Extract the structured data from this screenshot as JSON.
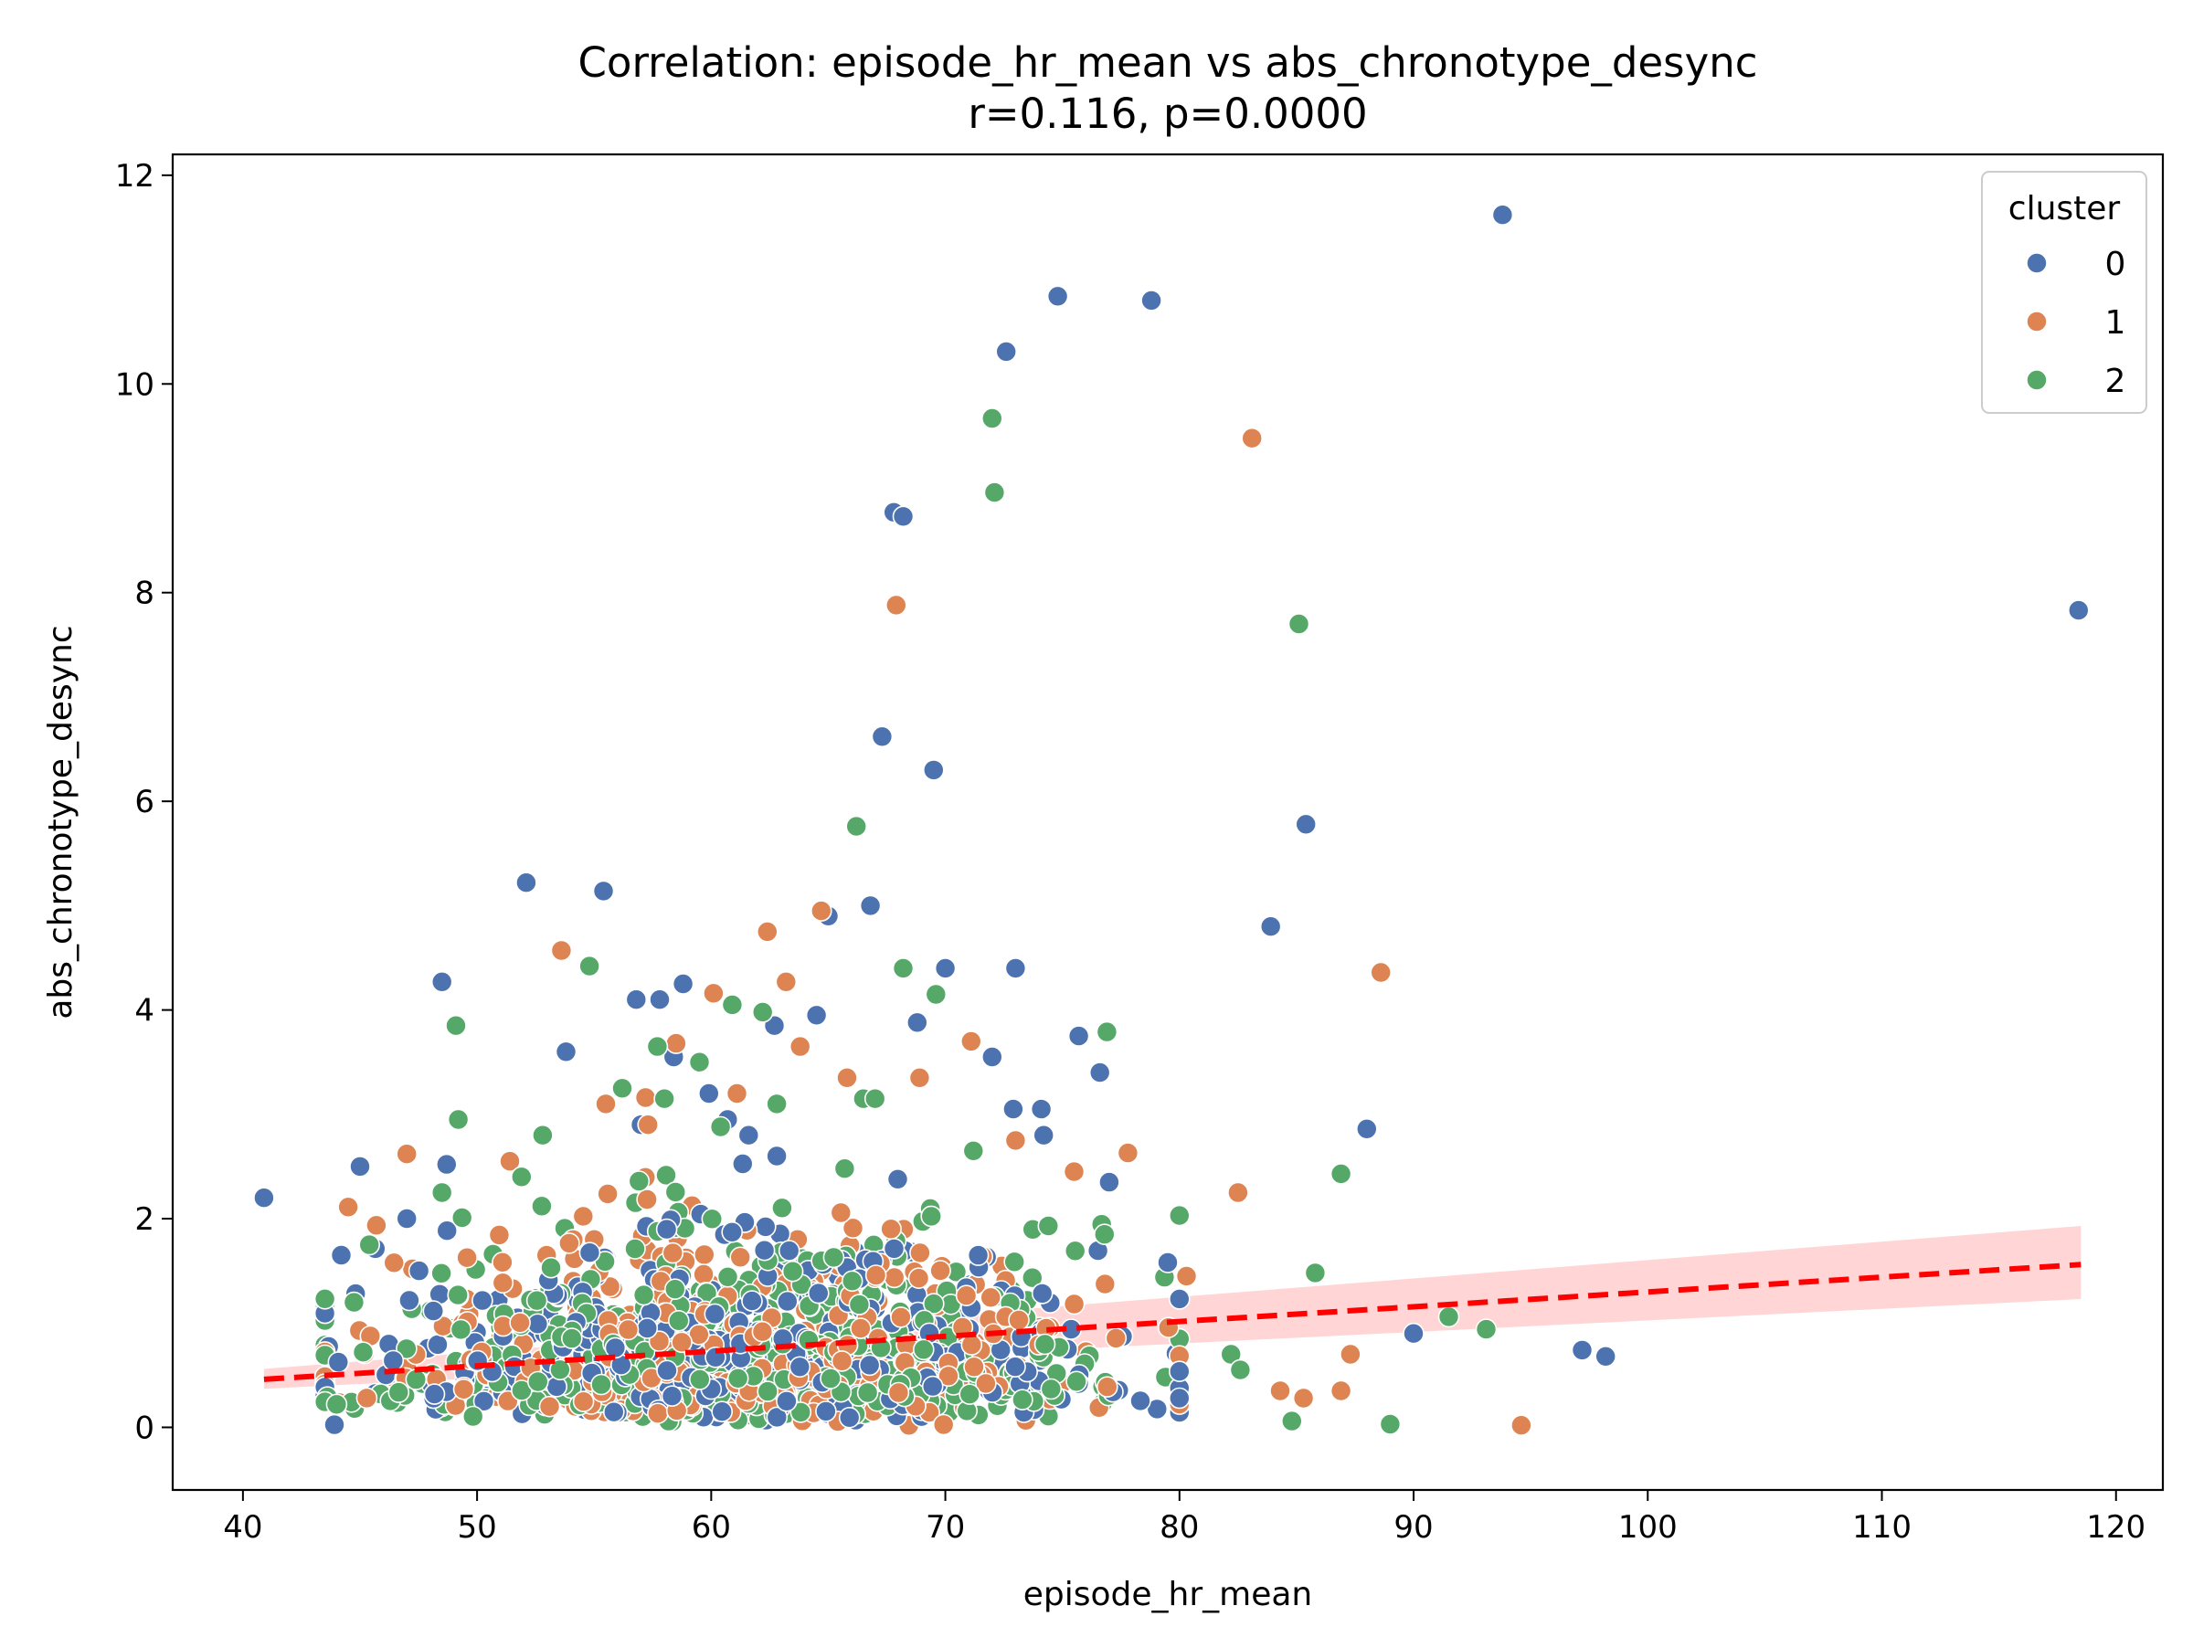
{
  "chart_data": {
    "type": "scatter",
    "title": "Correlation: episode_hr_mean vs abs_chronotype_desync",
    "subtitle": "r=0.116, p=0.0000",
    "xlabel": "episode_hr_mean",
    "ylabel": "abs_chronotype_desync",
    "xlim": [
      37,
      122
    ],
    "ylim": [
      -0.6,
      12.2
    ],
    "xticks": [
      40,
      50,
      60,
      70,
      80,
      90,
      100,
      110,
      120
    ],
    "yticks": [
      0,
      2,
      4,
      6,
      8,
      10,
      12
    ],
    "grid": false,
    "legend": {
      "title": "cluster",
      "placement": "top-right"
    },
    "colors": {
      "0": "#4c72b0",
      "1": "#dd8452",
      "2": "#55a868",
      "regression": "#ff0000",
      "ci_band": "#ffb3b3"
    },
    "regression": {
      "x": [
        40.9,
        118.5
      ],
      "y": [
        0.46,
        1.56
      ],
      "ci_lower": [
        0.37,
        1.23
      ],
      "ci_upper": [
        0.56,
        1.93
      ],
      "style": "dashed"
    },
    "series": [
      {
        "name": "0",
        "x": [
          40.9,
          48.5,
          48.7,
          45.0,
          44.2,
          47.0,
          52.1,
          55.4,
          53.8,
          56.8,
          57.8,
          58.8,
          57.0,
          58.4,
          59.9,
          60.7,
          61.6,
          62.7,
          62.8,
          64.5,
          65.0,
          66.8,
          67.3,
          67.8,
          68.2,
          68.8,
          69.5,
          70.0,
          72.0,
          72.6,
          72.9,
          73.0,
          74.1,
          74.2,
          74.8,
          75.7,
          76.6,
          77.0,
          78.8,
          79.5,
          80.0,
          83.9,
          85.4,
          88.0,
          90.0,
          93.8,
          97.2,
          98.2,
          118.4
        ],
        "y": [
          2.2,
          4.27,
          2.52,
          2.5,
          1.65,
          2.0,
          5.22,
          5.14,
          3.6,
          4.1,
          4.1,
          4.25,
          2.9,
          3.55,
          3.2,
          2.95,
          2.8,
          3.85,
          2.6,
          3.95,
          4.9,
          5.0,
          6.62,
          8.77,
          8.73,
          3.88,
          6.3,
          4.4,
          3.55,
          10.31,
          3.05,
          4.4,
          3.05,
          2.8,
          10.84,
          3.75,
          3.4,
          2.35,
          10.8,
          1.58,
          0.28,
          4.8,
          5.78,
          2.86,
          0.9,
          11.62,
          0.74,
          0.68,
          7.83
        ]
      },
      {
        "name": "1",
        "x": [
          47.0,
          51.4,
          53.6,
          55.5,
          57.3,
          58.5,
          60.1,
          61.1,
          62.4,
          63.2,
          63.8,
          64.7,
          65.8,
          67.9,
          68.9,
          71.1,
          73.0,
          75.5,
          77.8,
          80.3,
          82.5,
          83.1,
          84.3,
          85.3,
          86.9,
          87.3,
          88.6,
          94.6
        ],
        "y": [
          2.62,
          2.55,
          4.57,
          3.1,
          2.9,
          3.68,
          4.16,
          3.2,
          4.75,
          4.27,
          3.65,
          4.95,
          3.35,
          7.88,
          3.35,
          3.7,
          2.75,
          2.45,
          2.63,
          1.45,
          2.25,
          9.48,
          0.35,
          0.28,
          0.35,
          0.7,
          4.36,
          0.02
        ]
      },
      {
        "name": "2",
        "x": [
          44.0,
          45.4,
          48.5,
          49.1,
          49.2,
          51.9,
          52.8,
          54.8,
          56.2,
          57.7,
          58.0,
          59.5,
          60.4,
          60.9,
          62.2,
          62.8,
          65.7,
          66.2,
          66.5,
          67.0,
          68.2,
          69.6,
          71.2,
          72.0,
          72.1,
          74.4,
          76.8,
          76.9,
          80.0,
          82.2,
          82.6,
          84.8,
          85.1,
          85.8,
          86.9,
          89.0,
          91.5,
          93.1
        ],
        "y": [
          0.22,
          1.75,
          2.25,
          3.85,
          2.95,
          2.4,
          2.8,
          4.42,
          3.25,
          3.65,
          3.15,
          3.5,
          2.88,
          4.05,
          3.98,
          3.1,
          2.48,
          5.76,
          3.15,
          3.15,
          4.4,
          4.15,
          2.65,
          9.67,
          8.96,
          1.93,
          1.85,
          3.79,
          2.03,
          0.7,
          0.55,
          0.06,
          7.7,
          1.48,
          2.43,
          0.03,
          1.06,
          0.94
        ]
      }
    ]
  }
}
